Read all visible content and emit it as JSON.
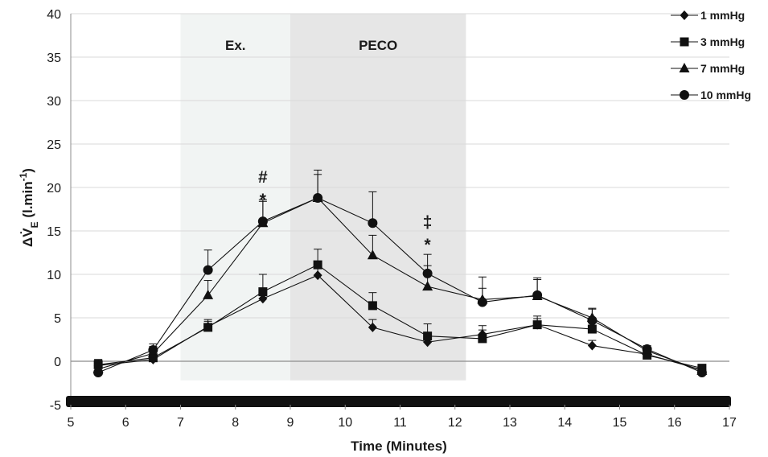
{
  "chart_data": {
    "type": "line",
    "title": "",
    "xlabel": "Time (Minutes)",
    "ylabel_main": "ΔV̇",
    "ylabel_sub": "E",
    "ylabel_units": " (l.min",
    "ylabel_units_sup": "-1",
    "ylabel_units_close": ")",
    "xlim": [
      5,
      17
    ],
    "ylim": [
      -5,
      40
    ],
    "xticks": [
      5,
      6,
      7,
      8,
      9,
      10,
      11,
      12,
      13,
      14,
      15,
      16,
      17
    ],
    "yticks": [
      -5,
      0,
      5,
      10,
      15,
      20,
      25,
      30,
      35,
      40
    ],
    "grid": true,
    "legend_position": "top-right",
    "regions": [
      {
        "label": "Ex.",
        "x0": 7,
        "x1": 9,
        "color": "#f1f4f3"
      },
      {
        "label": "PECO",
        "x0": 9,
        "x1": 12.2,
        "color": "#e6e6e6"
      }
    ],
    "bottom_bar": {
      "x0": 5,
      "x1": 17,
      "y": -5,
      "color": "#111111"
    },
    "x": [
      5.5,
      6.5,
      7.5,
      8.5,
      9.5,
      10.5,
      11.5,
      12.5,
      13.5,
      14.5,
      15.5,
      16.5
    ],
    "series": [
      {
        "name": "1 mmHg",
        "marker": "diamond",
        "values": [
          -0.5,
          0.2,
          4.0,
          7.2,
          9.9,
          3.9,
          2.2,
          3.1,
          4.2,
          1.8,
          0.8,
          -1.0
        ],
        "errors": [
          0.7,
          0.5,
          0.6,
          0.9,
          0.8,
          0.9,
          0.8,
          1.0,
          0.7,
          0.6,
          0.5,
          0.4
        ]
      },
      {
        "name": "3 mmHg",
        "marker": "square",
        "values": [
          -0.4,
          0.4,
          3.9,
          8.0,
          11.1,
          6.4,
          2.9,
          2.6,
          4.2,
          3.7,
          0.7,
          -0.8
        ],
        "errors": [
          0.6,
          0.6,
          0.9,
          2.0,
          1.8,
          1.5,
          1.4,
          1.0,
          1.0,
          1.2,
          0.5,
          0.4
        ]
      },
      {
        "name": "7 mmHg",
        "marker": "triangle",
        "values": [
          -0.9,
          0.9,
          7.6,
          15.9,
          18.8,
          12.2,
          8.6,
          7.1,
          7.5,
          5.0,
          1.2,
          -1.1
        ],
        "errors": [
          1.0,
          0.8,
          1.7,
          2.5,
          2.7,
          2.3,
          2.4,
          2.6,
          1.9,
          1.1,
          0.4,
          0.5
        ]
      },
      {
        "name": "10 mmHg",
        "marker": "circle",
        "values": [
          -1.3,
          1.3,
          10.5,
          16.1,
          18.8,
          15.9,
          10.1,
          6.8,
          7.6,
          4.7,
          1.4,
          -1.3
        ],
        "errors": [
          1.1,
          0.7,
          2.3,
          2.5,
          3.2,
          3.6,
          2.2,
          1.6,
          2.0,
          1.3,
          0.4,
          0.3
        ]
      }
    ],
    "annotations": [
      {
        "x": 8.5,
        "y": 21.3,
        "text": "#"
      },
      {
        "x": 8.5,
        "y": 18.7,
        "text": "*"
      },
      {
        "x": 11.5,
        "y": 16.1,
        "text": "‡"
      },
      {
        "x": 11.5,
        "y": 13.5,
        "text": "*"
      }
    ]
  }
}
